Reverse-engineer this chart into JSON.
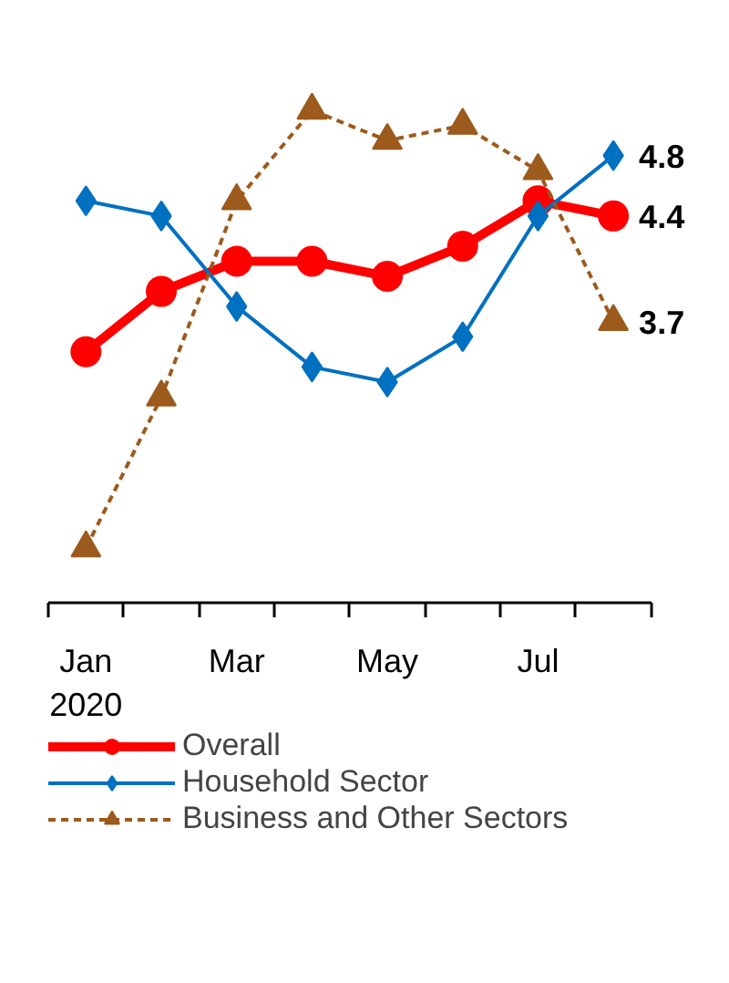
{
  "chart_data": {
    "type": "line",
    "categories": [
      "Jan\n2020",
      null,
      "Mar",
      null,
      "May",
      null,
      "Jul",
      null
    ],
    "tick_labels": "x",
    "grid": false,
    "legend": "bottom",
    "series": [
      {
        "name": "Overall",
        "color": "#ff0000",
        "marker": "circle",
        "line_style": "solid",
        "values": [
          3.5,
          3.9,
          4.1,
          4.1,
          4.0,
          4.2,
          4.5,
          4.4
        ],
        "value_labels": [
          null,
          null,
          null,
          null,
          null,
          null,
          null,
          "4.4"
        ]
      },
      {
        "name": "Household Sector",
        "color": "#0070c0",
        "marker": "diamond",
        "line_style": "solid",
        "values": [
          4.5,
          4.4,
          3.8,
          3.4,
          3.3,
          3.6,
          4.4,
          4.8
        ],
        "value_labels": [
          null,
          null,
          null,
          null,
          null,
          null,
          null,
          "4.8"
        ]
      },
      {
        "name": "Business and Other Sectors",
        "color": "#9c5a1c",
        "marker": "triangle",
        "line_style": "dashed",
        "values": [
          2.2,
          3.2,
          4.5,
          5.1,
          4.9,
          5.0,
          4.7,
          3.7
        ],
        "value_labels": [
          null,
          null,
          null,
          null,
          null,
          null,
          null,
          "3.7"
        ]
      }
    ]
  }
}
